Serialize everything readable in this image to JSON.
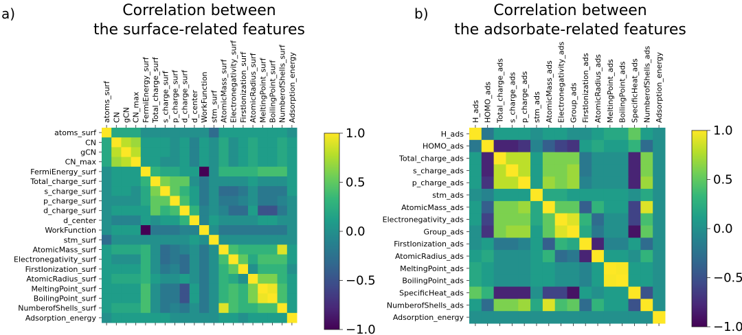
{
  "colormap": [
    "#440154",
    "#482878",
    "#3e4a89",
    "#31688e",
    "#26828e",
    "#1f9e89",
    "#35b779",
    "#6ece58",
    "#b5de2b",
    "#fde725"
  ],
  "chart_data": [
    {
      "type": "heatmap",
      "panel_label": "a)",
      "title_line1": "Correlation between",
      "title_line2": "the surface-related features",
      "features": [
        "atoms_surf",
        "CN",
        "gCN",
        "CN_max",
        "FermiEnergy_surf",
        "Total_charge_surf",
        "s_charge_surf",
        "p_charge_surf",
        "d_charge_surf",
        "d_center",
        "WorkFunction",
        "stm_surf",
        "AtomicMass_surf",
        "Electronegativity_surf",
        "FirstIonization_surf",
        "AtomicRadius_surf",
        "MeltingPoint_surf",
        "BoilingPoint_surf",
        "NumberofShells_surf",
        "Adsorption_energy"
      ],
      "colorbar_range": [
        -1.0,
        1.0
      ],
      "colorbar_ticks": [
        "1.0",
        "0.5",
        "0.0",
        "−0.5",
        "−1.0"
      ],
      "approx_values": [
        [
          1.0,
          0.2,
          0.2,
          0.2,
          0.0,
          0.0,
          0.0,
          0.0,
          0.0,
          0.0,
          0.0,
          -0.3,
          0.1,
          0.1,
          0.1,
          0.1,
          0.1,
          0.1,
          0.1,
          0.0
        ],
        [
          0.2,
          1.0,
          0.8,
          0.7,
          0.1,
          0.1,
          0.1,
          0.0,
          0.1,
          -0.1,
          0.1,
          0.0,
          0.2,
          0.0,
          0.1,
          0.2,
          0.1,
          0.1,
          0.2,
          0.1
        ],
        [
          0.2,
          0.8,
          1.0,
          0.8,
          0.1,
          0.1,
          0.1,
          0.0,
          0.1,
          -0.1,
          0.1,
          0.0,
          0.2,
          0.0,
          0.1,
          0.2,
          0.1,
          0.1,
          0.2,
          0.1
        ],
        [
          0.2,
          0.7,
          0.8,
          1.0,
          0.1,
          0.1,
          0.0,
          0.0,
          0.1,
          -0.1,
          0.1,
          0.0,
          0.2,
          0.0,
          0.1,
          0.2,
          0.1,
          0.1,
          0.2,
          0.1
        ],
        [
          0.0,
          0.1,
          0.1,
          0.1,
          1.0,
          0.3,
          0.2,
          0.2,
          0.1,
          0.1,
          -1.0,
          0.0,
          0.3,
          0.3,
          0.3,
          0.3,
          0.4,
          0.4,
          0.4,
          0.1
        ],
        [
          0.0,
          0.1,
          0.1,
          0.1,
          0.3,
          1.0,
          0.6,
          0.5,
          0.5,
          0.0,
          -0.2,
          0.0,
          0.0,
          0.0,
          0.0,
          0.1,
          0.0,
          0.0,
          0.0,
          0.1
        ],
        [
          0.0,
          0.1,
          0.1,
          0.0,
          0.2,
          0.6,
          1.0,
          0.5,
          0.3,
          0.1,
          -0.2,
          0.0,
          -0.3,
          -0.3,
          -0.2,
          0.0,
          -0.2,
          -0.2,
          -0.2,
          0.1
        ],
        [
          0.0,
          0.0,
          0.0,
          0.0,
          0.2,
          0.5,
          0.5,
          1.0,
          0.4,
          0.1,
          -0.2,
          0.0,
          -0.2,
          -0.2,
          -0.1,
          0.0,
          -0.2,
          -0.2,
          -0.1,
          0.0
        ],
        [
          0.0,
          0.1,
          0.1,
          0.1,
          0.1,
          0.5,
          0.3,
          0.4,
          1.0,
          0.3,
          -0.1,
          0.0,
          -0.1,
          -0.3,
          -0.3,
          0.1,
          -0.5,
          -0.5,
          -0.2,
          0.0
        ],
        [
          0.0,
          -0.1,
          -0.1,
          -0.1,
          0.1,
          0.0,
          0.1,
          0.1,
          0.3,
          1.0,
          -0.1,
          0.1,
          0.0,
          0.0,
          0.0,
          0.0,
          0.1,
          0.1,
          0.0,
          0.0
        ],
        [
          0.0,
          0.1,
          0.1,
          0.1,
          -1.0,
          -0.2,
          -0.2,
          -0.2,
          -0.1,
          -0.1,
          1.0,
          0.0,
          -0.2,
          -0.2,
          -0.2,
          -0.2,
          -0.2,
          -0.2,
          -0.2,
          0.0
        ],
        [
          -0.3,
          0.0,
          0.0,
          0.0,
          0.0,
          0.0,
          0.0,
          0.0,
          0.0,
          0.1,
          0.0,
          1.0,
          0.0,
          0.0,
          0.0,
          0.0,
          0.0,
          0.0,
          0.0,
          0.0
        ],
        [
          0.1,
          0.2,
          0.2,
          0.2,
          0.3,
          0.0,
          -0.3,
          -0.2,
          -0.1,
          0.0,
          -0.2,
          0.0,
          1.0,
          0.4,
          0.3,
          0.3,
          0.3,
          0.3,
          0.9,
          0.1
        ],
        [
          0.1,
          0.0,
          0.0,
          0.0,
          0.3,
          0.0,
          -0.3,
          -0.2,
          -0.3,
          0.0,
          -0.2,
          0.0,
          0.4,
          1.0,
          0.5,
          0.2,
          0.4,
          0.4,
          0.4,
          0.1
        ],
        [
          0.1,
          0.1,
          0.1,
          0.1,
          0.3,
          0.0,
          -0.2,
          -0.1,
          -0.3,
          0.0,
          -0.2,
          0.0,
          0.3,
          0.5,
          1.0,
          0.0,
          0.3,
          0.3,
          0.3,
          0.0
        ],
        [
          0.1,
          0.2,
          0.2,
          0.2,
          0.3,
          0.1,
          0.0,
          0.0,
          0.1,
          0.0,
          -0.2,
          0.0,
          0.3,
          0.2,
          0.0,
          1.0,
          0.6,
          0.6,
          0.3,
          0.1
        ],
        [
          0.1,
          0.1,
          0.1,
          0.1,
          0.4,
          0.0,
          -0.2,
          -0.2,
          -0.5,
          0.1,
          -0.2,
          0.0,
          0.3,
          0.4,
          0.3,
          0.6,
          1.0,
          0.95,
          0.4,
          0.1
        ],
        [
          0.1,
          0.1,
          0.1,
          0.1,
          0.4,
          0.0,
          -0.2,
          -0.2,
          -0.5,
          0.1,
          -0.2,
          0.0,
          0.3,
          0.4,
          0.3,
          0.6,
          0.95,
          1.0,
          0.4,
          0.1
        ],
        [
          0.1,
          0.2,
          0.2,
          0.2,
          0.4,
          0.0,
          -0.2,
          -0.1,
          -0.2,
          0.0,
          -0.2,
          0.0,
          0.9,
          0.4,
          0.3,
          0.3,
          0.4,
          0.4,
          1.0,
          0.1
        ],
        [
          0.0,
          0.1,
          0.1,
          0.1,
          0.1,
          0.1,
          0.1,
          0.0,
          0.0,
          0.0,
          0.0,
          0.0,
          0.1,
          0.1,
          0.0,
          0.1,
          0.1,
          0.1,
          0.1,
          1.0
        ]
      ]
    },
    {
      "type": "heatmap",
      "panel_label": "b)",
      "title_line1": "Correlation between",
      "title_line2": "the adsorbate-related features",
      "features": [
        "H_ads",
        "HOMO_ads",
        "Total_charge_ads",
        "s_charge_ads",
        "p_charge_ads",
        "stm_ads",
        "AtomicMass_ads",
        "Electronegativity_ads",
        "Group_ads",
        "FirstIonization_ads",
        "AtomicRadius_ads",
        "MeltingPoint_ads",
        "BoilingPoint_ads",
        "SpecificHeat_ads",
        "NumberofShells_ads",
        "Adsorption_energy"
      ],
      "colorbar_range": [
        -1.0,
        1.0
      ],
      "colorbar_ticks": [
        "1.0",
        "0.5",
        "0.0",
        "−0.5",
        "−1.0"
      ],
      "approx_values": [
        [
          1.0,
          -0.2,
          0.1,
          0.1,
          0.1,
          0.0,
          0.1,
          0.1,
          0.0,
          0.0,
          0.1,
          0.2,
          0.2,
          0.5,
          0.1,
          0.0
        ],
        [
          -0.2,
          1.0,
          -0.8,
          -0.8,
          -0.7,
          -0.1,
          -0.4,
          -0.6,
          -0.7,
          0.1,
          0.2,
          0.1,
          0.1,
          0.3,
          -0.3,
          0.0
        ],
        [
          0.1,
          -0.8,
          1.0,
          0.8,
          0.8,
          0.1,
          0.6,
          0.6,
          0.6,
          -0.2,
          0.0,
          0.0,
          0.0,
          -0.8,
          0.6,
          0.0
        ],
        [
          0.1,
          -0.8,
          0.8,
          1.0,
          0.8,
          0.1,
          0.6,
          0.6,
          0.7,
          -0.2,
          0.0,
          0.0,
          0.0,
          -0.8,
          0.6,
          0.0
        ],
        [
          0.1,
          -0.7,
          0.8,
          0.8,
          1.0,
          0.1,
          0.7,
          0.6,
          0.7,
          -0.1,
          0.0,
          0.0,
          0.0,
          -0.8,
          0.7,
          0.0
        ],
        [
          0.0,
          -0.1,
          0.1,
          0.1,
          0.1,
          1.0,
          0.2,
          0.2,
          0.1,
          0.1,
          0.1,
          0.1,
          0.1,
          0.0,
          0.2,
          0.0
        ],
        [
          0.1,
          -0.4,
          0.6,
          0.6,
          0.7,
          0.2,
          1.0,
          0.5,
          0.5,
          -0.4,
          0.3,
          0.1,
          0.1,
          -0.6,
          0.9,
          0.0
        ],
        [
          0.1,
          -0.6,
          0.6,
          0.6,
          0.6,
          0.2,
          0.5,
          1.0,
          0.9,
          0.3,
          -0.3,
          0.0,
          0.0,
          -0.6,
          0.4,
          0.0
        ],
        [
          0.0,
          -0.7,
          0.6,
          0.7,
          0.7,
          0.1,
          0.5,
          0.9,
          1.0,
          0.2,
          -0.2,
          0.0,
          0.0,
          -0.9,
          0.5,
          0.0
        ],
        [
          0.0,
          0.1,
          -0.2,
          -0.2,
          -0.1,
          0.1,
          -0.4,
          0.3,
          0.2,
          1.0,
          -0.8,
          -0.1,
          -0.1,
          0.1,
          -0.3,
          0.0
        ],
        [
          0.1,
          0.2,
          0.0,
          0.0,
          0.0,
          0.1,
          0.3,
          -0.3,
          -0.2,
          -0.8,
          1.0,
          0.1,
          0.1,
          0.0,
          0.3,
          0.0
        ],
        [
          0.2,
          0.1,
          0.0,
          0.0,
          0.0,
          0.1,
          0.1,
          0.0,
          0.0,
          -0.1,
          0.1,
          1.0,
          0.98,
          0.1,
          0.1,
          0.0
        ],
        [
          0.2,
          0.1,
          0.0,
          0.0,
          0.0,
          0.1,
          0.1,
          0.0,
          0.0,
          -0.1,
          0.1,
          0.98,
          1.0,
          0.1,
          0.1,
          0.0
        ],
        [
          0.5,
          0.3,
          -0.8,
          -0.8,
          -0.8,
          0.0,
          -0.6,
          -0.6,
          -0.9,
          0.1,
          0.0,
          0.1,
          0.1,
          1.0,
          -0.5,
          0.0
        ],
        [
          0.1,
          -0.3,
          0.6,
          0.6,
          0.7,
          0.2,
          0.9,
          0.4,
          0.5,
          -0.3,
          0.3,
          0.1,
          0.1,
          -0.5,
          1.0,
          0.0
        ],
        [
          0.0,
          0.0,
          0.0,
          0.0,
          0.0,
          0.0,
          0.0,
          0.0,
          0.0,
          0.0,
          0.0,
          0.0,
          0.0,
          0.0,
          0.0,
          1.0
        ]
      ]
    }
  ]
}
